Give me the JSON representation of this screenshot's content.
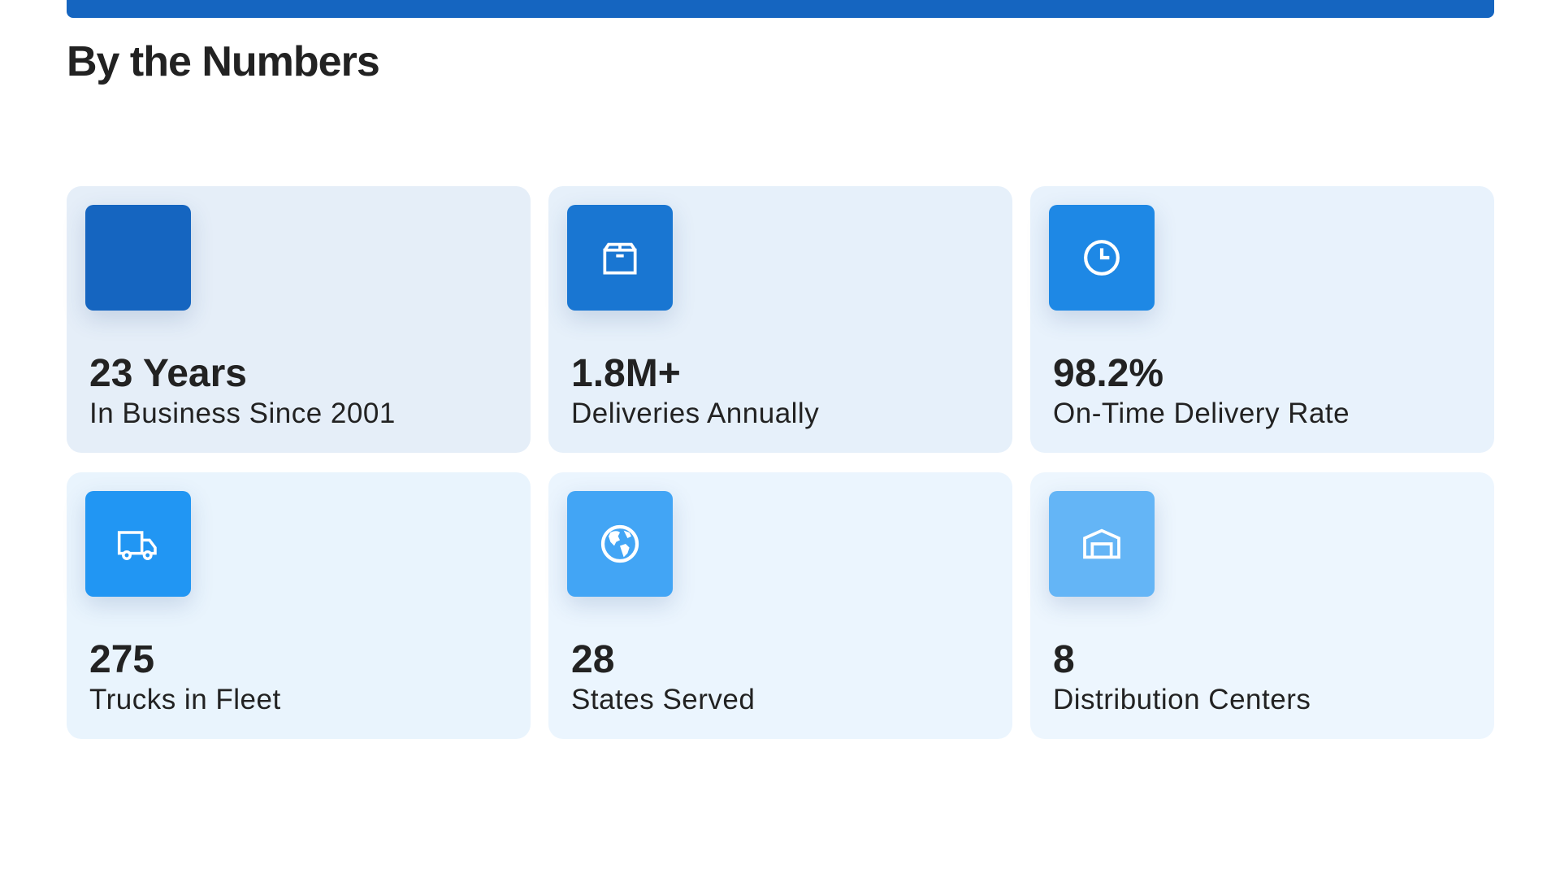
{
  "header": {
    "title": "By the Numbers",
    "accent_color": "#1565c0"
  },
  "stats": [
    {
      "value": "23 Years",
      "label": "In Business Since 2001",
      "icon": "none",
      "icon_color": "#1565c0",
      "card_color": "#e5eef8"
    },
    {
      "value": "1.8M+",
      "label": "Deliveries Annually",
      "icon": "box-icon",
      "icon_color": "#1976d2",
      "card_color": "#e6f0fa"
    },
    {
      "value": "98.2%",
      "label": "On-Time Delivery Rate",
      "icon": "clock-icon",
      "icon_color": "#1e88e5",
      "card_color": "#e8f2fc"
    },
    {
      "value": "275",
      "label": "Trucks in Fleet",
      "icon": "truck-icon",
      "icon_color": "#2196f3",
      "card_color": "#e9f4fd"
    },
    {
      "value": "28",
      "label": "States Served",
      "icon": "globe-icon",
      "icon_color": "#42a5f5",
      "card_color": "#ebf5fe"
    },
    {
      "value": "8",
      "label": "Distribution Centers",
      "icon": "warehouse-icon",
      "icon_color": "#64b5f6",
      "card_color": "#edf6fe"
    }
  ]
}
